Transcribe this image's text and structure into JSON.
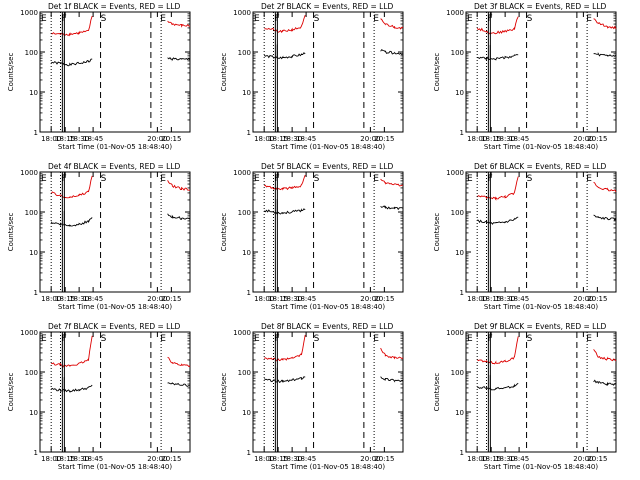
{
  "colors": {
    "events": "#000000",
    "lld": "#dd0000",
    "axis": "#000000",
    "background": "#ffffff"
  },
  "chart_data": [
    {
      "type": "line",
      "title": "Det 1f BLACK = Events, RED = LLD",
      "xlabel": "Start Time (01-Nov-05 18:48:40)",
      "ylabel": "Counts/sec",
      "yscale": "log",
      "ylim": [
        1,
        1000
      ],
      "xticks": [
        "18:00",
        "18:15",
        "18:30",
        "18:45",
        "20:00",
        "20:15"
      ],
      "x": [
        "17:48",
        "18:00",
        "18:10",
        "18:14",
        "18:20",
        "18:30",
        "18:40",
        "18:44",
        "18:53",
        "19:55",
        "20:05",
        "20:10",
        "20:20",
        "20:29"
      ],
      "series": [
        {
          "name": "BLACK = Events",
          "values": [
            null,
            55,
            52,
            50,
            48,
            52,
            58,
            65,
            null,
            null,
            70,
            68,
            65,
            66
          ]
        },
        {
          "name": "RED = LLD",
          "values": [
            null,
            290,
            280,
            275,
            280,
            300,
            330,
            800,
            null,
            null,
            600,
            500,
            460,
            450
          ]
        }
      ],
      "annotations": [
        "E",
        "F",
        "S",
        "E"
      ]
    },
    {
      "type": "line",
      "title": "Det 2f BLACK = Events, RED = LLD",
      "xlabel": "Start Time (01-Nov-05 18:48:40)",
      "ylabel": "Counts/sec",
      "yscale": "log",
      "ylim": [
        1,
        1000
      ],
      "xticks": [
        "18:00",
        "18:15",
        "18:30",
        "18:45",
        "20:00",
        "20:15"
      ],
      "x": [
        "17:48",
        "18:00",
        "18:10",
        "18:14",
        "18:20",
        "18:30",
        "18:40",
        "18:44",
        "18:53",
        "19:55",
        "20:05",
        "20:10",
        "20:20",
        "20:29"
      ],
      "series": [
        {
          "name": "BLACK = Events",
          "values": [
            null,
            80,
            75,
            70,
            72,
            78,
            85,
            95,
            null,
            null,
            110,
            100,
            95,
            92
          ]
        },
        {
          "name": "RED = LLD",
          "values": [
            null,
            400,
            360,
            320,
            330,
            360,
            420,
            800,
            null,
            null,
            650,
            500,
            420,
            400
          ]
        }
      ],
      "annotations": [
        "E",
        "F",
        "S",
        "E"
      ]
    },
    {
      "type": "line",
      "title": "Det 3f BLACK = Events, RED = LLD",
      "xlabel": "Start Time (01-Nov-05 18:48:40)",
      "ylabel": "Counts/sec",
      "yscale": "log",
      "ylim": [
        1,
        1000
      ],
      "xticks": [
        "18:00",
        "18:15",
        "18:30",
        "18:45",
        "20:00",
        "20:15"
      ],
      "x": [
        "17:48",
        "18:00",
        "18:10",
        "18:14",
        "18:20",
        "18:30",
        "18:40",
        "18:44",
        "18:53",
        "19:55",
        "20:05",
        "20:10",
        "20:20",
        "20:29"
      ],
      "series": [
        {
          "name": "BLACK = Events",
          "values": [
            null,
            75,
            70,
            68,
            68,
            72,
            80,
            85,
            null,
            null,
            90,
            85,
            82,
            80
          ]
        },
        {
          "name": "RED = LLD",
          "values": [
            null,
            390,
            330,
            300,
            300,
            330,
            380,
            800,
            null,
            null,
            700,
            520,
            430,
            400
          ]
        }
      ],
      "annotations": [
        "E",
        "F",
        "S",
        "E"
      ]
    },
    {
      "type": "line",
      "title": "Det 4f BLACK = Events, RED = LLD",
      "xlabel": "Start Time (01-Nov-05 18:48:40)",
      "ylabel": "Counts/sec",
      "yscale": "log",
      "ylim": [
        1,
        1000
      ],
      "xticks": [
        "18:00",
        "18:15",
        "18:30",
        "18:45",
        "20:00",
        "20:15"
      ],
      "x": [
        "17:48",
        "18:00",
        "18:10",
        "18:14",
        "18:20",
        "18:30",
        "18:40",
        "18:44",
        "18:53",
        "19:55",
        "20:05",
        "20:10",
        "20:20",
        "20:29"
      ],
      "series": [
        {
          "name": "BLACK = Events",
          "values": [
            null,
            55,
            50,
            48,
            46,
            50,
            58,
            70,
            null,
            null,
            85,
            75,
            70,
            68
          ]
        },
        {
          "name": "RED = LLD",
          "values": [
            null,
            300,
            260,
            230,
            230,
            260,
            320,
            800,
            null,
            null,
            600,
            450,
            380,
            360
          ]
        }
      ],
      "annotations": [
        "E",
        "F",
        "S",
        "E"
      ]
    },
    {
      "type": "line",
      "title": "Det 5f BLACK = Events, RED = LLD",
      "xlabel": "Start Time (01-Nov-05 18:48:40)",
      "ylabel": "Counts/sec",
      "yscale": "log",
      "ylim": [
        1,
        1000
      ],
      "xticks": [
        "18:00",
        "18:15",
        "18:30",
        "18:45",
        "20:00",
        "20:15"
      ],
      "x": [
        "17:48",
        "18:00",
        "18:10",
        "18:14",
        "18:20",
        "18:30",
        "18:40",
        "18:44",
        "18:53",
        "19:55",
        "20:05",
        "20:10",
        "20:20",
        "20:29"
      ],
      "series": [
        {
          "name": "BLACK = Events",
          "values": [
            null,
            110,
            100,
            95,
            95,
            100,
            110,
            120,
            null,
            null,
            140,
            130,
            125,
            122
          ]
        },
        {
          "name": "RED = LLD",
          "values": [
            null,
            450,
            400,
            380,
            380,
            400,
            460,
            800,
            null,
            null,
            700,
            550,
            480,
            460
          ]
        }
      ],
      "annotations": [
        "E",
        "F",
        "S",
        "E"
      ]
    },
    {
      "type": "line",
      "title": "Det 6f BLACK = Events, RED = LLD",
      "xlabel": "Start Time (01-Nov-05 18:48:40)",
      "ylabel": "Counts/sec",
      "yscale": "log",
      "ylim": [
        1,
        1000
      ],
      "xticks": [
        "18:00",
        "18:15",
        "18:30",
        "18:45",
        "20:00",
        "20:15"
      ],
      "x": [
        "17:48",
        "18:00",
        "18:10",
        "18:14",
        "18:20",
        "18:30",
        "18:40",
        "18:44",
        "18:53",
        "19:55",
        "20:05",
        "20:10",
        "20:20",
        "20:29"
      ],
      "series": [
        {
          "name": "BLACK = Events",
          "values": [
            null,
            60,
            55,
            52,
            52,
            56,
            65,
            75,
            null,
            null,
            80,
            72,
            68,
            66
          ]
        },
        {
          "name": "RED = LLD",
          "values": [
            null,
            250,
            230,
            220,
            220,
            240,
            290,
            800,
            null,
            null,
            550,
            420,
            360,
            340
          ]
        }
      ],
      "annotations": [
        "E",
        "F",
        "S",
        "E"
      ]
    },
    {
      "type": "line",
      "title": "Det 7f BLACK = Events, RED = LLD",
      "xlabel": "Start Time (01-Nov-05 18:48:40)",
      "ylabel": "Counts/sec",
      "yscale": "log",
      "ylim": [
        1,
        1000
      ],
      "xticks": [
        "18:00",
        "18:15",
        "18:30",
        "18:45",
        "20:00",
        "20:15"
      ],
      "x": [
        "17:48",
        "18:00",
        "18:10",
        "18:14",
        "18:20",
        "18:30",
        "18:40",
        "18:44",
        "18:53",
        "19:55",
        "20:05",
        "20:10",
        "20:20",
        "20:29"
      ],
      "series": [
        {
          "name": "BLACK = Events",
          "values": [
            null,
            38,
            35,
            34,
            34,
            36,
            40,
            45,
            null,
            null,
            55,
            50,
            48,
            46
          ]
        },
        {
          "name": "RED = LLD",
          "values": [
            null,
            160,
            150,
            140,
            145,
            160,
            200,
            800,
            null,
            null,
            250,
            170,
            150,
            145
          ]
        }
      ],
      "annotations": [
        "E",
        "F",
        "S",
        "E"
      ]
    },
    {
      "type": "line",
      "title": "Det 8f BLACK = Events, RED = LLD",
      "xlabel": "Start Time (01-Nov-05 18:48:40)",
      "ylabel": "Counts/sec",
      "yscale": "log",
      "ylim": [
        1,
        1000
      ],
      "xticks": [
        "18:00",
        "18:15",
        "18:30",
        "18:45",
        "20:00",
        "20:15"
      ],
      "x": [
        "17:48",
        "18:00",
        "18:10",
        "18:14",
        "18:20",
        "18:30",
        "18:40",
        "18:44",
        "18:53",
        "19:55",
        "20:05",
        "20:10",
        "20:20",
        "20:29"
      ],
      "series": [
        {
          "name": "BLACK = Events",
          "values": [
            null,
            65,
            60,
            58,
            58,
            62,
            70,
            78,
            null,
            null,
            75,
            66,
            62,
            60
          ]
        },
        {
          "name": "RED = LLD",
          "values": [
            null,
            230,
            210,
            200,
            200,
            220,
            270,
            800,
            null,
            null,
            400,
            260,
            230,
            220
          ]
        }
      ],
      "annotations": [
        "E",
        "F",
        "S",
        "E"
      ]
    },
    {
      "type": "line",
      "title": "Det 9f BLACK = Events, RED = LLD",
      "xlabel": "Start Time (01-Nov-05 18:48:40)",
      "ylabel": "Counts/sec",
      "yscale": "log",
      "ylim": [
        1,
        1000
      ],
      "xticks": [
        "18:00",
        "18:15",
        "18:30",
        "18:45",
        "20:00",
        "20:15"
      ],
      "x": [
        "17:48",
        "18:00",
        "18:10",
        "18:14",
        "18:20",
        "18:30",
        "18:40",
        "18:44",
        "18:53",
        "19:55",
        "20:05",
        "20:10",
        "20:20",
        "20:29"
      ],
      "series": [
        {
          "name": "BLACK = Events",
          "values": [
            null,
            42,
            40,
            38,
            38,
            40,
            45,
            52,
            null,
            null,
            60,
            54,
            50,
            48
          ]
        },
        {
          "name": "RED = LLD",
          "values": [
            null,
            200,
            180,
            170,
            170,
            185,
            230,
            800,
            null,
            null,
            350,
            240,
            210,
            200
          ]
        }
      ],
      "annotations": [
        "E",
        "F",
        "S",
        "E"
      ]
    }
  ]
}
